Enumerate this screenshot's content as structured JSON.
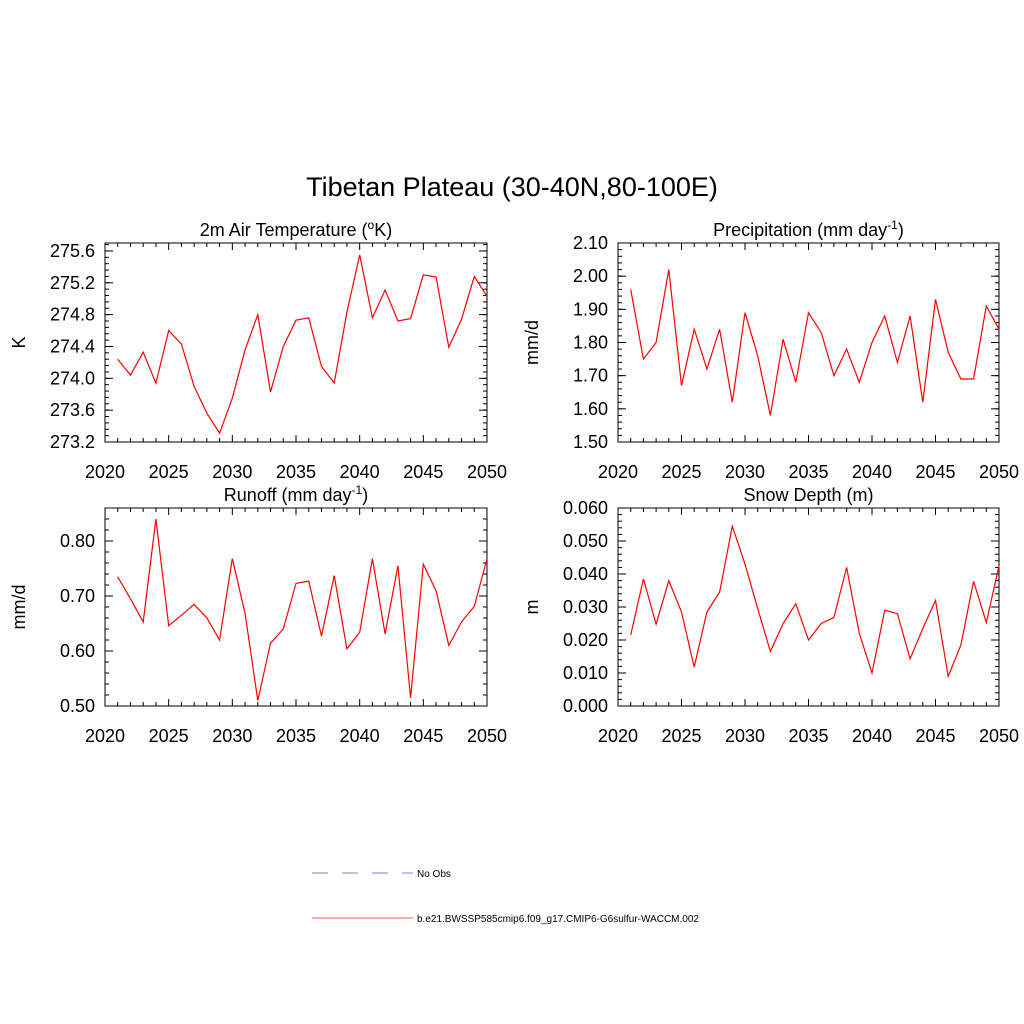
{
  "figure": {
    "title": "Tibetan Plateau (30-40N,80-100E)"
  },
  "legend": [
    {
      "label": "No Obs",
      "color": "#9b9bd8",
      "dashed": true
    },
    {
      "label": "b.e21.BWSSP585cmip6.f09_g17.CMIP6-G6sulfur-WACCM.002",
      "color": "#f08080",
      "dashed": false
    }
  ],
  "chart_data": [
    {
      "type": "line",
      "title": "2m Air Temperature (",
      "title_sup": "o",
      "title_tail": "K)",
      "ylabel": "K",
      "xlim": [
        2020,
        2050
      ],
      "ylim": [
        273.2,
        275.7
      ],
      "yticks": [
        273.2,
        273.6,
        274.0,
        274.4,
        274.8,
        275.2,
        275.6
      ],
      "ytick_labels": [
        "273.2",
        "273.6",
        "274.0",
        "274.4",
        "274.8",
        "275.2",
        "275.6"
      ],
      "xticks": [
        2020,
        2025,
        2030,
        2035,
        2040,
        2045,
        2050
      ],
      "xtick_labels": [
        "2020",
        "2025",
        "2030",
        "2035",
        "2040",
        "2045",
        "2050"
      ],
      "series": [
        {
          "color": "#ff0000",
          "x": [
            2021,
            2022,
            2023,
            2024,
            2025,
            2026,
            2027,
            2028,
            2029,
            2030,
            2031,
            2032,
            2033,
            2034,
            2035,
            2036,
            2037,
            2038,
            2039,
            2040,
            2041,
            2042,
            2043,
            2044,
            2045,
            2046,
            2047,
            2048,
            2049,
            2050
          ],
          "values": [
            274.24,
            274.04,
            274.33,
            273.94,
            274.6,
            274.43,
            273.9,
            273.56,
            273.31,
            273.75,
            274.36,
            274.8,
            273.83,
            274.4,
            274.73,
            274.76,
            274.15,
            273.94,
            274.83,
            275.55,
            274.76,
            275.11,
            274.72,
            274.75,
            275.3,
            275.27,
            274.39,
            274.74,
            275.28,
            275.03
          ]
        }
      ]
    },
    {
      "type": "line",
      "title": "Precipitation (mm day",
      "title_sup": "-1",
      "title_tail": ")",
      "ylabel": "mm/d",
      "xlim": [
        2020,
        2050
      ],
      "ylim": [
        1.5,
        2.1
      ],
      "yticks": [
        1.5,
        1.6,
        1.7,
        1.8,
        1.9,
        2.0,
        2.1
      ],
      "ytick_labels": [
        "1.50",
        "1.60",
        "1.70",
        "1.80",
        "1.90",
        "2.00",
        "2.10"
      ],
      "xticks": [
        2020,
        2025,
        2030,
        2035,
        2040,
        2045,
        2050
      ],
      "xtick_labels": [
        "2020",
        "2025",
        "2030",
        "2035",
        "2040",
        "2045",
        "2050"
      ],
      "series": [
        {
          "color": "#ff0000",
          "x": [
            2021,
            2022,
            2023,
            2024,
            2025,
            2026,
            2027,
            2028,
            2029,
            2030,
            2031,
            2032,
            2033,
            2034,
            2035,
            2036,
            2037,
            2038,
            2039,
            2040,
            2041,
            2042,
            2043,
            2044,
            2045,
            2046,
            2047,
            2048,
            2049,
            2050
          ],
          "values": [
            1.96,
            1.75,
            1.8,
            2.02,
            1.67,
            1.84,
            1.72,
            1.84,
            1.62,
            1.89,
            1.76,
            1.58,
            1.81,
            1.68,
            1.89,
            1.83,
            1.7,
            1.78,
            1.68,
            1.8,
            1.88,
            1.74,
            1.88,
            1.62,
            1.93,
            1.77,
            1.69,
            1.69,
            1.91,
            1.84
          ]
        }
      ]
    },
    {
      "type": "line",
      "title": "Runoff (mm day",
      "title_sup": "-1",
      "title_tail": ")",
      "ylabel": "mm/d",
      "xlim": [
        2020,
        2050
      ],
      "ylim": [
        0.5,
        0.86
      ],
      "yticks": [
        0.5,
        0.6,
        0.7,
        0.8
      ],
      "ytick_labels": [
        "0.50",
        "0.60",
        "0.70",
        "0.80"
      ],
      "xticks": [
        2020,
        2025,
        2030,
        2035,
        2040,
        2045,
        2050
      ],
      "xtick_labels": [
        "2020",
        "2025",
        "2030",
        "2035",
        "2040",
        "2045",
        "2050"
      ],
      "series": [
        {
          "color": "#ff0000",
          "x": [
            2021,
            2022,
            2023,
            2024,
            2025,
            2026,
            2027,
            2028,
            2029,
            2030,
            2031,
            2032,
            2033,
            2034,
            2035,
            2036,
            2037,
            2038,
            2039,
            2040,
            2041,
            2042,
            2043,
            2044,
            2045,
            2046,
            2047,
            2048,
            2049,
            2050
          ],
          "values": [
            0.735,
            0.695,
            0.653,
            0.84,
            0.646,
            0.665,
            0.685,
            0.66,
            0.62,
            0.768,
            0.668,
            0.51,
            0.614,
            0.64,
            0.723,
            0.727,
            0.627,
            0.737,
            0.604,
            0.634,
            0.768,
            0.631,
            0.755,
            0.515,
            0.758,
            0.709,
            0.61,
            0.653,
            0.681,
            0.768
          ]
        }
      ]
    },
    {
      "type": "line",
      "title": "Snow Depth (m)",
      "title_sup": "",
      "title_tail": "",
      "ylabel": "m",
      "xlim": [
        2020,
        2050
      ],
      "ylim": [
        0.0,
        0.06
      ],
      "yticks": [
        0.0,
        0.01,
        0.02,
        0.03,
        0.04,
        0.05,
        0.06
      ],
      "ytick_labels": [
        "0.000",
        "0.010",
        "0.020",
        "0.030",
        "0.040",
        "0.050",
        "0.060"
      ],
      "xticks": [
        2020,
        2025,
        2030,
        2035,
        2040,
        2045,
        2050
      ],
      "xtick_labels": [
        "2020",
        "2025",
        "2030",
        "2035",
        "2040",
        "2045",
        "2050"
      ],
      "series": [
        {
          "color": "#ff0000",
          "x": [
            2021,
            2022,
            2023,
            2024,
            2025,
            2026,
            2027,
            2028,
            2029,
            2030,
            2031,
            2032,
            2033,
            2034,
            2035,
            2036,
            2037,
            2038,
            2039,
            2040,
            2041,
            2042,
            2043,
            2044,
            2045,
            2046,
            2047,
            2048,
            2049,
            2050
          ],
          "values": [
            0.0215,
            0.0385,
            0.0248,
            0.038,
            0.0285,
            0.0118,
            0.0285,
            0.0345,
            0.0545,
            0.043,
            0.0295,
            0.0165,
            0.025,
            0.031,
            0.02,
            0.025,
            0.0268,
            0.042,
            0.022,
            0.01,
            0.029,
            0.028,
            0.0143,
            0.0235,
            0.032,
            0.009,
            0.0185,
            0.0378,
            0.0253,
            0.0425
          ]
        }
      ]
    }
  ]
}
